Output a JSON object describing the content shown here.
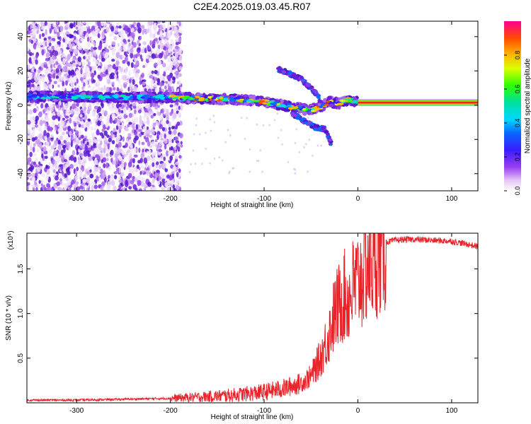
{
  "title": "C2E4.2025.019.03.45.R07",
  "colors": {
    "snr_line": "#e8232a",
    "spectrogram_scatter": "#6a1fd8",
    "spectrogram_core": "#0a66ff",
    "carrier": "#e8232a"
  },
  "chart_data": [
    {
      "type": "heatmap",
      "title": "C2E4.2025.019.03.45.R07",
      "xlabel": "Height of straight line (km)",
      "ylabel": "Frequency (Hz)",
      "xlim": [
        -353,
        128
      ],
      "ylim": [
        -50,
        49
      ],
      "x_ticks": [
        -300,
        -200,
        -100,
        0,
        100
      ],
      "x_tick_labels": [
        "-300",
        "-200",
        "-100",
        "0",
        "100"
      ],
      "y_ticks": [
        -40,
        -20,
        0,
        20,
        40
      ],
      "y_tick_labels": [
        "-40",
        "-20",
        "0",
        "20",
        "40"
      ],
      "colorbar": {
        "label": "Normalized spectral amplitude",
        "range": [
          0,
          1
        ],
        "ticks": [
          0.0,
          0.2,
          0.4,
          0.6,
          0.8
        ],
        "tick_labels": [
          "0.0",
          "0.2",
          "0.4",
          "0.6",
          "0.8"
        ],
        "colormap": "rainbow (white-purple-blue-cyan-green-yellow-orange-red)"
      },
      "features": {
        "noise_region_x": [
          -353,
          -188
        ],
        "main_trace": {
          "x": [
            -353,
            -300,
            -250,
            -200,
            -150,
            -120,
            -100,
            -80,
            -60,
            -50,
            -40,
            -30,
            -20,
            -10,
            0
          ],
          "y": [
            5,
            5,
            4.5,
            4.5,
            3.5,
            3,
            2,
            0,
            -2,
            -3,
            -1,
            2,
            1,
            3,
            2
          ]
        },
        "carrier": {
          "x": [
            0,
            128
          ],
          "y": 1.5
        },
        "upper_branch": {
          "x": [
            -85,
            -75,
            -60,
            -45,
            -40
          ],
          "y": [
            21,
            19,
            15,
            7,
            3
          ]
        },
        "lower_branch": {
          "x": [
            -70,
            -55,
            -45,
            -35,
            -28
          ],
          "y": [
            -5,
            -10,
            -13,
            -14,
            -23
          ]
        }
      }
    },
    {
      "type": "line",
      "title": "",
      "xlabel": "Height of straight line (km)",
      "ylabel": "SNR (10 * v/v)",
      "scale_label": "(x10⁴)",
      "xlim": [
        -353,
        128
      ],
      "ylim": [
        0,
        1.9
      ],
      "x_ticks": [
        -300,
        -200,
        -100,
        0,
        100
      ],
      "x_tick_labels": [
        "-300",
        "-200",
        "-100",
        "0",
        "100"
      ],
      "y_ticks": [
        0.5,
        1.0,
        1.5
      ],
      "y_tick_labels": [
        "0.5",
        "1.0",
        "1.5"
      ],
      "series": [
        {
          "x": [
            -353,
            -300,
            -250,
            -200,
            -180,
            -160,
            -140,
            -120,
            -100,
            -80,
            -60,
            -50,
            -45,
            -40,
            -35,
            -30,
            -25,
            -20,
            -15,
            -10,
            -5,
            0,
            5,
            10,
            15,
            20,
            25,
            30,
            40,
            50,
            60,
            80,
            100,
            110,
            120,
            128
          ],
          "y": [
            0.03,
            0.03,
            0.04,
            0.05,
            0.06,
            0.07,
            0.08,
            0.1,
            0.12,
            0.16,
            0.22,
            0.3,
            0.4,
            0.5,
            0.65,
            0.8,
            1.0,
            1.1,
            1.2,
            1.15,
            1.3,
            1.35,
            1.45,
            1.55,
            1.6,
            1.7,
            1.75,
            1.8,
            1.82,
            1.83,
            1.83,
            1.82,
            1.81,
            1.79,
            1.77,
            1.75
          ]
        }
      ]
    }
  ]
}
